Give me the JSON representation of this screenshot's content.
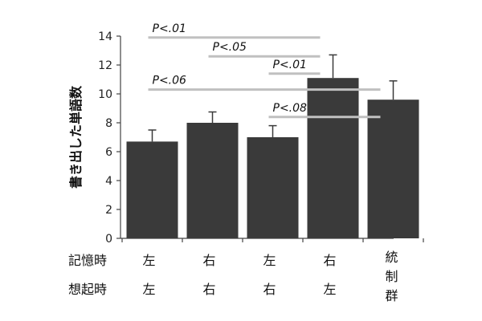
{
  "chart_data": {
    "type": "bar",
    "ylabel": "書き出した単語数",
    "ylim": [
      0,
      14
    ],
    "yticks": [
      0,
      2,
      4,
      6,
      8,
      10,
      12,
      14
    ],
    "grid": false,
    "row_labels": [
      "記憶時",
      "想起時"
    ],
    "categories": [
      {
        "encode": "左",
        "recall": "左"
      },
      {
        "encode": "右",
        "recall": "右"
      },
      {
        "encode": "左",
        "recall": "右"
      },
      {
        "encode": "右",
        "recall": "左"
      },
      {
        "control": [
          "統",
          "制",
          "群"
        ]
      }
    ],
    "values": [
      6.7,
      8.0,
      7.0,
      11.1,
      9.6
    ],
    "errors": [
      0.8,
      0.75,
      0.8,
      1.6,
      1.3
    ],
    "bar_color": "#3a3a3a",
    "annotation_line_color": "#c0c0c0",
    "annotations": [
      {
        "label": "P<.01",
        "from": 0,
        "to": 3,
        "y": 13.9
      },
      {
        "label": "P<.05",
        "from": 1,
        "to": 3,
        "y": 12.6
      },
      {
        "label": "P<.01",
        "from": 2,
        "to": 3,
        "y": 11.4
      },
      {
        "label": "P<.06",
        "from": 0,
        "to": 4,
        "y": 10.3
      },
      {
        "label": "P<.08",
        "from": 2,
        "to": 4,
        "y": 8.4
      }
    ]
  }
}
